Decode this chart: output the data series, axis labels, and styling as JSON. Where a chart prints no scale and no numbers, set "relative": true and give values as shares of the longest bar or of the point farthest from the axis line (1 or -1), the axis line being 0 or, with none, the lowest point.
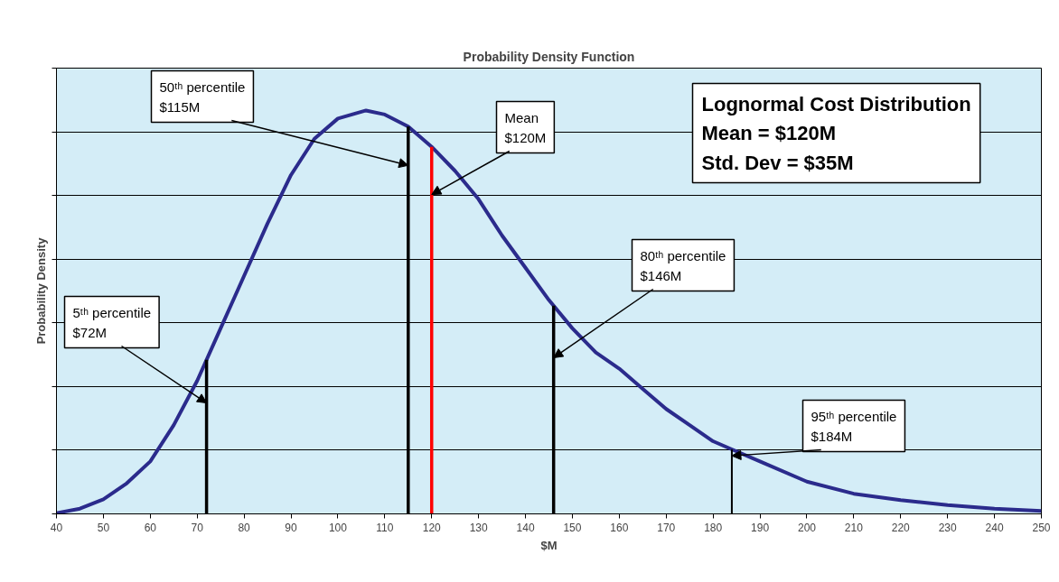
{
  "chart_data": {
    "type": "line",
    "title": "Probability Density Function",
    "xlabel": "$M",
    "ylabel": "Probability Density",
    "relative": true,
    "grid": "y",
    "xlim": [
      40,
      250
    ],
    "xticks": [
      40,
      50,
      60,
      70,
      80,
      90,
      100,
      110,
      120,
      130,
      140,
      150,
      160,
      170,
      180,
      190,
      200,
      210,
      220,
      230,
      240,
      250
    ],
    "series": [
      {
        "color": "#2b2b8c",
        "x": [
          40,
          45,
          50,
          55,
          60,
          65,
          70,
          75,
          80,
          85,
          90,
          95,
          100,
          106,
          110,
          115,
          120,
          125,
          130,
          135,
          140,
          145,
          150,
          155,
          160,
          165,
          170,
          175,
          180,
          184,
          190,
          200,
          210,
          220,
          230,
          240,
          250
        ],
        "values": [
          0.002,
          0.013,
          0.036,
          0.076,
          0.13,
          0.22,
          0.33,
          0.46,
          0.59,
          0.72,
          0.84,
          0.93,
          0.98,
          1.0,
          0.99,
          0.96,
          0.91,
          0.85,
          0.78,
          0.69,
          0.61,
          0.53,
          0.46,
          0.4,
          0.36,
          0.31,
          0.26,
          0.22,
          0.18,
          0.16,
          0.13,
          0.08,
          0.05,
          0.034,
          0.022,
          0.013,
          0.007
        ]
      }
    ],
    "ref_lines": [
      {
        "axis": "x",
        "value": 72,
        "label": "5ᵗʰ percentile\n$72M",
        "color": "#000000"
      },
      {
        "axis": "x",
        "value": 115,
        "label": "50ᵗʰ percentile\n$115M",
        "color": "#000000"
      },
      {
        "axis": "x",
        "value": 120,
        "label": "Mean\n$120M",
        "color": "#ff0000"
      },
      {
        "axis": "x",
        "value": 146,
        "label": "80ᵗʰ percentile\n$146M",
        "color": "#000000"
      },
      {
        "axis": "x",
        "value": 184,
        "label": "95ᵗʰ percentile\n$184M",
        "color": "#000000"
      }
    ],
    "annotations": [
      "Lognormal Cost Distribution\nMean = $120M\nStd. Dev = $35M"
    ]
  }
}
